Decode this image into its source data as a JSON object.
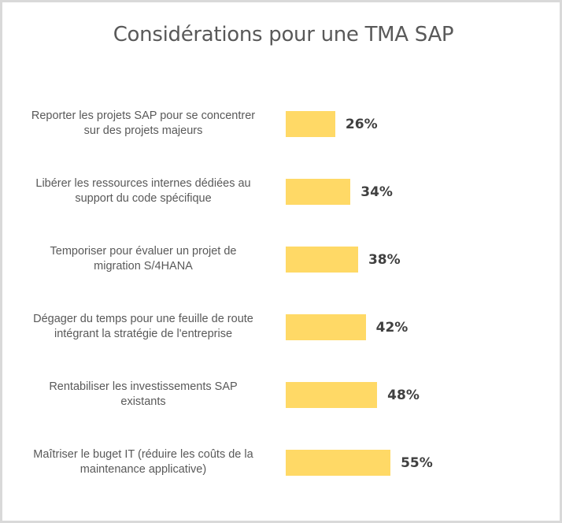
{
  "chart_data": {
    "type": "bar",
    "orientation": "horizontal",
    "title": "Considérations pour une TMA SAP",
    "xlabel": "",
    "ylabel": "",
    "xlim": [
      0,
      100
    ],
    "grid": false,
    "legend": "none",
    "bar_color": "#FFD966",
    "categories": [
      "Reporter les projets SAP pour se concentrer sur des projets majeurs",
      "Libérer les ressources internes dédiées au support du code spécifique",
      "Temporiser pour évaluer un projet de migration S/4HANA",
      "Dégager du temps pour une feuille de route intégrant la stratégie de l'entreprise",
      "Rentabiliser les investissements SAP existants",
      "Maîtriser le buget IT (réduire les coûts de la maintenance applicative)"
    ],
    "category_lines": [
      [
        "Reporter les projets SAP pour se concentrer",
        "sur des projets majeurs"
      ],
      [
        "Libérer les ressources internes dédiées au",
        "support du code spécifique"
      ],
      [
        "Temporiser pour évaluer un projet de",
        "migration S/4HANA"
      ],
      [
        "Dégager du temps pour une feuille de route",
        "intégrant la stratégie de l'entreprise"
      ],
      [
        "Rentabiliser les investissements SAP",
        "existants"
      ],
      [
        "Maîtriser le buget IT (réduire les coûts de la",
        "maintenance applicative)"
      ]
    ],
    "values": [
      26,
      34,
      38,
      42,
      48,
      55
    ],
    "value_labels": [
      "26%",
      "34%",
      "38%",
      "42%",
      "48%",
      "55%"
    ],
    "unit": "%"
  }
}
